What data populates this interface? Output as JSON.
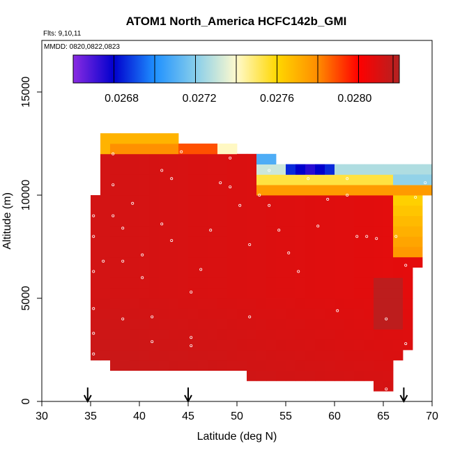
{
  "chart_data": {
    "type": "heatmap",
    "title": "ATOM1 North_America HCFC142b_GMI",
    "flights_text": "Flts: 9,10,11",
    "mmdd_text": "MMDD: 0820,0822,0823",
    "xlabel": "Latitude (deg N)",
    "ylabel": "Altitude (m)",
    "xlim": [
      30,
      70
    ],
    "ylim": [
      0,
      17500
    ],
    "x_ticks": [
      30,
      35,
      40,
      45,
      50,
      55,
      60,
      65,
      70
    ],
    "y_ticks": [
      0,
      5000,
      10000,
      15000
    ],
    "colorbar": {
      "range": [
        0.02655,
        0.02823
      ],
      "tick_values": [
        0.0268,
        0.0272,
        0.0276,
        0.028
      ],
      "tick_labels": [
        "0.0268",
        "0.0272",
        "0.0276",
        "0.0280"
      ],
      "stops": [
        "#8a2be2",
        "#0000cd",
        "#1e90ff",
        "#87ceeb",
        "#fffacd",
        "#ffd700",
        "#ff8c00",
        "#ff0000",
        "#b22222"
      ]
    },
    "lat_bins": [
      35,
      36,
      37,
      38,
      39,
      40,
      41,
      42,
      43,
      44,
      45,
      46,
      47,
      48,
      49,
      50,
      51,
      52,
      53,
      54,
      55,
      56,
      57,
      58,
      59,
      60,
      61,
      62,
      63,
      64,
      65,
      66,
      67,
      68,
      69
    ],
    "alt_bin_km": 0.5,
    "cells": [
      {
        "lat": 35,
        "alt_range": [
          2000,
          9500
        ],
        "value": 0.0281
      },
      {
        "lat": 36,
        "alt_range": [
          2000,
          12500
        ],
        "value": 0.0281
      },
      {
        "lat": 37,
        "alt_range": [
          1500,
          12500
        ],
        "value": 0.0281
      },
      {
        "lat": 38,
        "alt_range": [
          1500,
          12500
        ],
        "value": 0.0281
      },
      {
        "lat": 39,
        "alt_range": [
          1500,
          12500
        ],
        "value": 0.0281
      },
      {
        "lat": 40,
        "alt_range": [
          1500,
          12500
        ],
        "value": 0.0281
      },
      {
        "lat": 41,
        "alt_range": [
          1500,
          12500
        ],
        "value": 0.0281
      },
      {
        "lat": 42,
        "alt_range": [
          1500,
          12500
        ],
        "value": 0.0281
      },
      {
        "lat": 43,
        "alt_range": [
          1500,
          12500
        ],
        "value": 0.0281
      },
      {
        "lat": 44,
        "alt_range": [
          1500,
          12000
        ],
        "value": 0.0281
      },
      {
        "lat": 45,
        "alt_range": [
          1500,
          12000
        ],
        "value": 0.0281
      },
      {
        "lat": 46,
        "alt_range": [
          1500,
          12000
        ],
        "value": 0.0281
      },
      {
        "lat": 47,
        "alt_range": [
          1500,
          12000
        ],
        "value": 0.0281
      },
      {
        "lat": 48,
        "alt_range": [
          1500,
          12000
        ],
        "value": 0.0281
      },
      {
        "lat": 49,
        "alt_range": [
          1500,
          12000
        ],
        "value": 0.0281
      },
      {
        "lat": 50,
        "alt_range": [
          1500,
          11500
        ],
        "value": 0.0281
      },
      {
        "lat": 51,
        "alt_range": [
          1000,
          11500
        ],
        "value": 0.0281
      },
      {
        "lat": 52,
        "alt_range": [
          1000,
          11500
        ],
        "value": 0.0281
      },
      {
        "lat": 53,
        "alt_range": [
          1000,
          11500
        ],
        "value": 0.0281
      },
      {
        "lat": 54,
        "alt_range": [
          1000,
          11000
        ],
        "value": 0.0281
      },
      {
        "lat": 55,
        "alt_range": [
          1000,
          11000
        ],
        "value": 0.0281
      },
      {
        "lat": 56,
        "alt_range": [
          1000,
          11000
        ],
        "value": 0.0281
      },
      {
        "lat": 57,
        "alt_range": [
          1000,
          11000
        ],
        "value": 0.0281
      },
      {
        "lat": 58,
        "alt_range": [
          1000,
          11000
        ],
        "value": 0.0281
      },
      {
        "lat": 59,
        "alt_range": [
          1000,
          11000
        ],
        "value": 0.0281
      },
      {
        "lat": 60,
        "alt_range": [
          1000,
          11000
        ],
        "value": 0.0281
      },
      {
        "lat": 61,
        "alt_range": [
          1000,
          11000
        ],
        "value": 0.0281
      },
      {
        "lat": 62,
        "alt_range": [
          1000,
          11000
        ],
        "value": 0.0281
      },
      {
        "lat": 63,
        "alt_range": [
          1000,
          11000
        ],
        "value": 0.0281
      },
      {
        "lat": 64,
        "alt_range": [
          500,
          11000
        ],
        "value": 0.0281
      },
      {
        "lat": 65,
        "alt_range": [
          500,
          11000
        ],
        "value": 0.0281
      },
      {
        "lat": 66,
        "alt_range": [
          2000,
          11000
        ],
        "value": 0.0281
      },
      {
        "lat": 67,
        "alt_range": [
          2500,
          11000
        ],
        "value": 0.0281
      },
      {
        "lat": 68,
        "alt_range": [
          6500,
          11000
        ],
        "value": 0.0277
      },
      {
        "lat": 69,
        "alt_range": [
          10000,
          11000
        ],
        "value": 0.0273
      }
    ],
    "flight_track_markers": [
      [
        35,
        2300
      ],
      [
        35,
        3300
      ],
      [
        35,
        4500
      ],
      [
        35,
        6300
      ],
      [
        35,
        8000
      ],
      [
        35,
        9000
      ],
      [
        36,
        6800
      ],
      [
        37,
        9000
      ],
      [
        37,
        10500
      ],
      [
        37,
        12000
      ],
      [
        38,
        4000
      ],
      [
        38,
        8400
      ],
      [
        38,
        6800
      ],
      [
        39,
        9600
      ],
      [
        40,
        7100
      ],
      [
        40,
        6000
      ],
      [
        41,
        4100
      ],
      [
        41,
        2900
      ],
      [
        42,
        8600
      ],
      [
        42,
        11200
      ],
      [
        43,
        10800
      ],
      [
        43,
        7800
      ],
      [
        44,
        12100
      ],
      [
        45,
        3100
      ],
      [
        45,
        5300
      ],
      [
        45,
        2700
      ],
      [
        46,
        6400
      ],
      [
        47,
        8300
      ],
      [
        48,
        10600
      ],
      [
        49,
        10400
      ],
      [
        49,
        11800
      ],
      [
        50,
        9500
      ],
      [
        51,
        4100
      ],
      [
        51,
        7600
      ],
      [
        52,
        10000
      ],
      [
        53,
        9500
      ],
      [
        53,
        11200
      ],
      [
        54,
        8300
      ],
      [
        55,
        7200
      ],
      [
        56,
        6300
      ],
      [
        57,
        10800
      ],
      [
        58,
        8500
      ],
      [
        59,
        9800
      ],
      [
        60,
        4400
      ],
      [
        61,
        10000
      ],
      [
        61,
        10800
      ],
      [
        62,
        8000
      ],
      [
        63,
        8000
      ],
      [
        64,
        7900
      ],
      [
        65,
        4000
      ],
      [
        65,
        600
      ],
      [
        66,
        8000
      ],
      [
        67,
        6600
      ],
      [
        67,
        2800
      ],
      [
        68,
        9900
      ],
      [
        69,
        10600
      ]
    ],
    "arrow_markers_lat": [
      34.7,
      45,
      67.1
    ]
  }
}
